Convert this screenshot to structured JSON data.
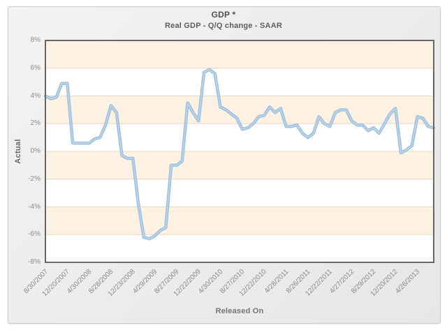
{
  "panel": {
    "title": "GDP *",
    "subtitle": "Real GDP - Q/Q change - SAAR"
  },
  "chart_data": {
    "type": "line",
    "title": "GDP *",
    "subtitle": "Real GDP - Q/Q change - SAAR",
    "xlabel": "Released On",
    "ylabel": "Actual",
    "ylim": [
      -8,
      8
    ],
    "y_tick_labels": [
      "8%",
      "6%",
      "4%",
      "2%",
      "0%",
      "-2%",
      "-4%",
      "-6%",
      "-8%"
    ],
    "y_tick_values": [
      8,
      6,
      4,
      2,
      0,
      -2,
      -4,
      -6,
      -8
    ],
    "x_tick_labels": [
      "8/30/2007",
      "12/20/2007",
      "4/30/2008",
      "8/28/2008",
      "12/23/2008",
      "4/29/2009",
      "8/27/2009",
      "12/22/2009",
      "4/30/2010",
      "8/27/2010",
      "12/22/2010",
      "4/28/2011",
      "8/26/2011",
      "12/22/2011",
      "4/27/2012",
      "8/29/2012",
      "12/20/2012",
      "4/26/2013"
    ],
    "x_tick_every": 4,
    "values": [
      4.0,
      3.8,
      3.9,
      4.9,
      4.9,
      0.6,
      0.6,
      0.6,
      0.6,
      0.9,
      1.0,
      1.9,
      3.3,
      2.8,
      -0.3,
      -0.5,
      -0.5,
      -3.8,
      -6.2,
      -6.3,
      -6.1,
      -5.7,
      -5.5,
      -1.0,
      -1.0,
      -0.7,
      3.5,
      2.8,
      2.2,
      5.7,
      5.9,
      5.6,
      3.2,
      3.0,
      2.7,
      2.4,
      1.6,
      1.7,
      2.0,
      2.5,
      2.6,
      3.2,
      2.8,
      3.1,
      1.8,
      1.8,
      1.9,
      1.3,
      1.0,
      1.3,
      2.5,
      2.0,
      1.8,
      2.8,
      3.0,
      3.0,
      2.2,
      1.9,
      1.9,
      1.5,
      1.7,
      1.3,
      2.0,
      2.7,
      3.1,
      -0.1,
      0.1,
      0.4,
      2.5,
      2.4,
      1.8,
      1.7
    ],
    "grid": "horizontal-bands",
    "legend": "none",
    "colors": {
      "line": "#9fbeda",
      "line_highlight": "#bcd4ea",
      "band": "#fcf1e2",
      "plot_bg": "#ffffff",
      "gridline": "#e8d9bd",
      "plot_border": "#666666"
    }
  }
}
